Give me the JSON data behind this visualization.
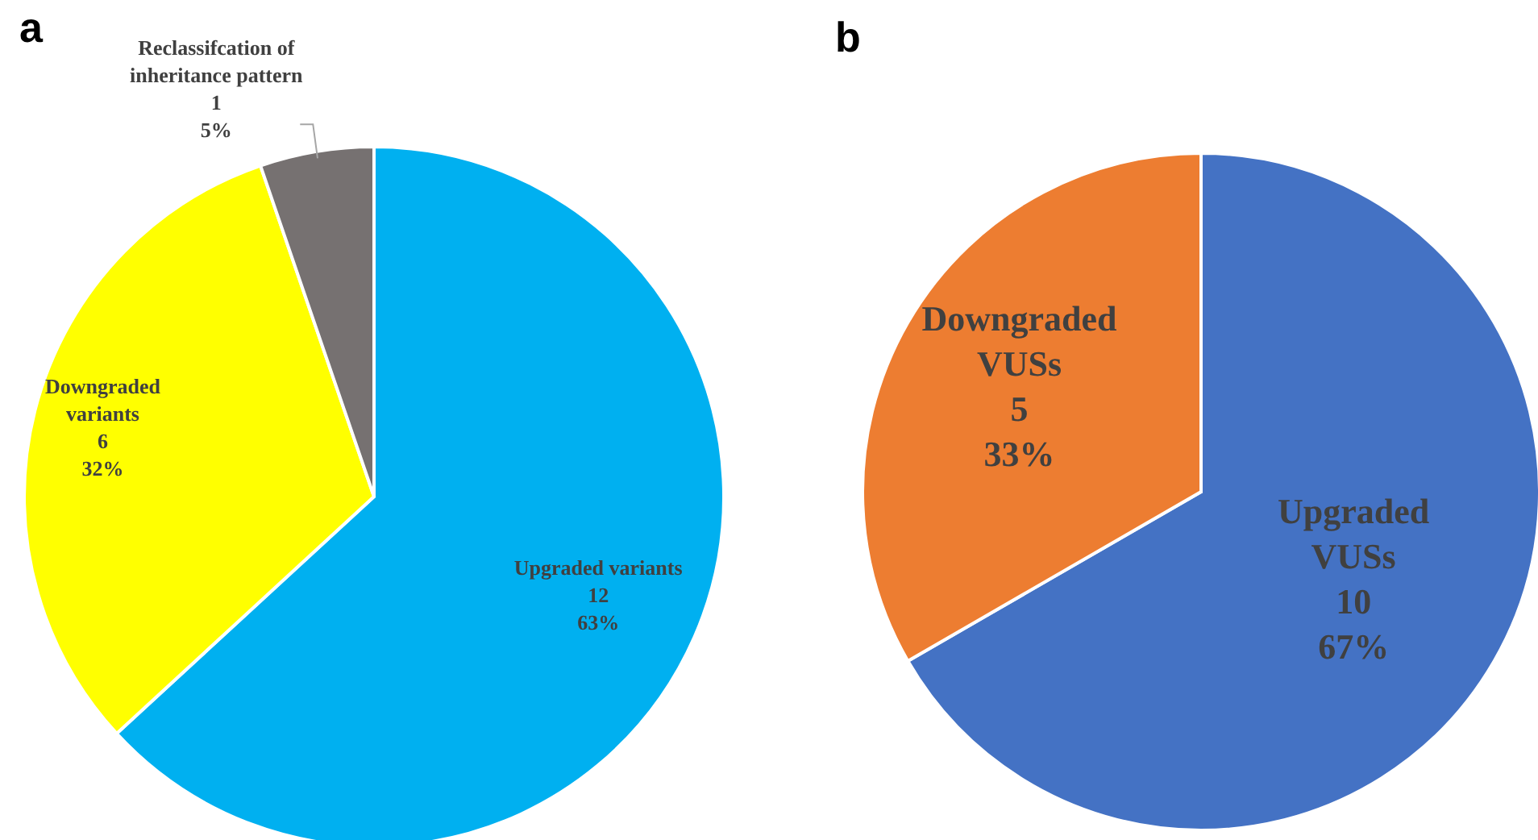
{
  "chart_data": [
    {
      "type": "pie",
      "title": "a",
      "categories": [
        "Upgraded variants",
        "Downgraded variants",
        "Reclassifcation of inheritance pattern"
      ],
      "values": [
        12,
        6,
        1
      ],
      "colors": [
        "#00b0f0",
        "#ffff00",
        "#767171"
      ],
      "value_labels": [
        "12\n63%",
        "6\n32%",
        "1\n5%"
      ],
      "legend": false
    },
    {
      "type": "pie",
      "title": "b",
      "categories": [
        "Upgraded VUSs",
        "Downgraded VUSs"
      ],
      "values": [
        10,
        5
      ],
      "colors": [
        "#4472c4",
        "#ed7d31"
      ],
      "value_labels": [
        "10\n67%",
        "5\n33%"
      ],
      "legend": false
    }
  ]
}
